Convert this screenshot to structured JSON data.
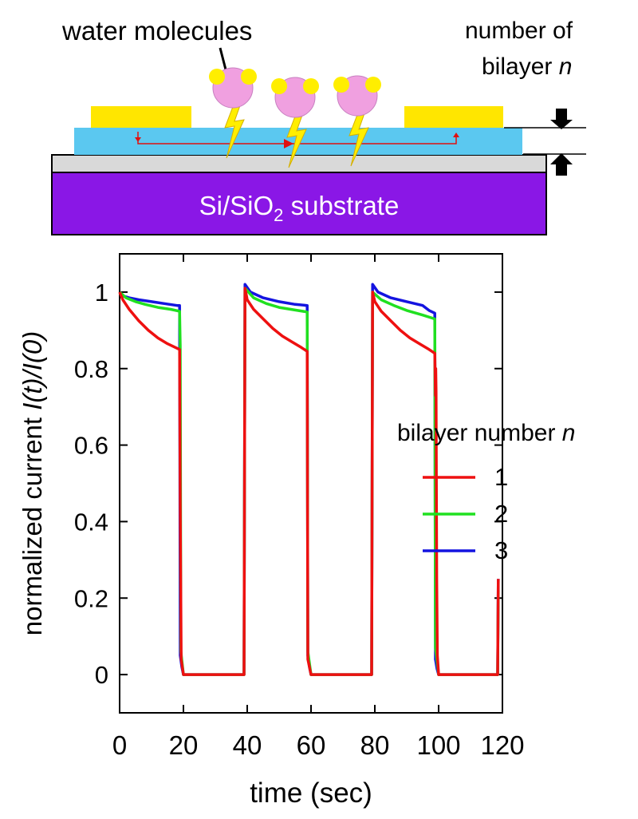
{
  "diagram": {
    "molecule_label": "water molecules",
    "thickness_label_line1": "number of",
    "thickness_label_line2_text": "bilayer ",
    "thickness_label_line2_var": "n",
    "substrate_label_main": "Si/SiO",
    "substrate_label_sub": "2",
    "substrate_label_rest": " substrate",
    "colors": {
      "electrode": "#ffe600",
      "film": "#5bc8f0",
      "oxide": "#d9d9d9",
      "substrate": "#8a17e6",
      "molecule": "#f0a0e0",
      "hydrogen": "#ffee00",
      "current_arrow": "#e01010"
    }
  },
  "chart_data": {
    "type": "line",
    "ylabel_prefix": "normalized current  ",
    "ylabel_math": "I(t)/I(0)",
    "xlabel": "time (sec)",
    "xlim": [
      0,
      120
    ],
    "ylim": [
      -0.1,
      1.1
    ],
    "x_ticks": [
      0,
      20,
      40,
      60,
      80,
      100,
      120
    ],
    "y_ticks": [
      0,
      0.2,
      0.4,
      0.6,
      0.8,
      1
    ],
    "y_tick_labels": [
      "0",
      "0.2",
      "0.4",
      "0.6",
      "0.8",
      "1"
    ],
    "legend_title_text": "bilayer  number  ",
    "legend_title_var": "n",
    "legend_placement": "right",
    "series": [
      {
        "name": "3",
        "color": "#1414e0",
        "points": [
          [
            0,
            1.0
          ],
          [
            1,
            0.99
          ],
          [
            3,
            0.985
          ],
          [
            6,
            0.98
          ],
          [
            10,
            0.975
          ],
          [
            14,
            0.97
          ],
          [
            18,
            0.965
          ],
          [
            18.8,
            0.965
          ],
          [
            19,
            0.05
          ],
          [
            19.5,
            0.02
          ],
          [
            20,
            0.0
          ],
          [
            39,
            0.0
          ],
          [
            39.3,
            1.02
          ],
          [
            41,
            1.0
          ],
          [
            45,
            0.985
          ],
          [
            50,
            0.975
          ],
          [
            55,
            0.968
          ],
          [
            58.8,
            0.965
          ],
          [
            59,
            0.05
          ],
          [
            59.5,
            0.02
          ],
          [
            60,
            0.0
          ],
          [
            79,
            0.0
          ],
          [
            79.3,
            1.02
          ],
          [
            81,
            1.0
          ],
          [
            85,
            0.985
          ],
          [
            90,
            0.975
          ],
          [
            95,
            0.965
          ],
          [
            97,
            0.952
          ],
          [
            98.8,
            0.945
          ],
          [
            99,
            0.04
          ],
          [
            99.5,
            0.015
          ],
          [
            100,
            0.0
          ],
          [
            118.5,
            0.0
          ],
          [
            118.7,
            0.25
          ]
        ]
      },
      {
        "name": "2",
        "color": "#20e020",
        "points": [
          [
            0,
            1.0
          ],
          [
            2,
            0.985
          ],
          [
            5,
            0.975
          ],
          [
            8,
            0.968
          ],
          [
            12,
            0.96
          ],
          [
            16,
            0.955
          ],
          [
            18.8,
            0.95
          ],
          [
            19,
            0.86
          ],
          [
            19.2,
            0.06
          ],
          [
            20,
            0.0
          ],
          [
            39,
            0.0
          ],
          [
            39.3,
            1.01
          ],
          [
            42,
            0.985
          ],
          [
            46,
            0.97
          ],
          [
            50,
            0.96
          ],
          [
            55,
            0.953
          ],
          [
            58.8,
            0.948
          ],
          [
            59,
            0.06
          ],
          [
            60,
            0.0
          ],
          [
            79,
            0.0
          ],
          [
            79.3,
            1.0
          ],
          [
            82,
            0.98
          ],
          [
            86,
            0.965
          ],
          [
            90,
            0.952
          ],
          [
            95,
            0.94
          ],
          [
            98.8,
            0.93
          ],
          [
            99,
            0.07
          ],
          [
            100,
            0.0
          ],
          [
            118.5,
            0.0
          ],
          [
            118.7,
            0.22
          ]
        ]
      },
      {
        "name": "1",
        "color": "#ee1010",
        "points": [
          [
            0,
            1.0
          ],
          [
            1,
            0.98
          ],
          [
            3,
            0.955
          ],
          [
            6,
            0.925
          ],
          [
            9,
            0.9
          ],
          [
            12,
            0.88
          ],
          [
            15,
            0.865
          ],
          [
            18.8,
            0.85
          ],
          [
            19,
            0.45
          ],
          [
            19.3,
            0.04
          ],
          [
            20,
            0.0
          ],
          [
            39,
            0.0
          ],
          [
            39.3,
            1.01
          ],
          [
            40,
            0.98
          ],
          [
            42,
            0.955
          ],
          [
            45,
            0.93
          ],
          [
            48,
            0.905
          ],
          [
            51,
            0.885
          ],
          [
            54,
            0.87
          ],
          [
            57,
            0.855
          ],
          [
            58.8,
            0.845
          ],
          [
            59,
            0.04
          ],
          [
            60,
            0.0
          ],
          [
            79,
            0.0
          ],
          [
            79.3,
            1.0
          ],
          [
            80,
            0.975
          ],
          [
            82,
            0.95
          ],
          [
            85,
            0.925
          ],
          [
            88,
            0.9
          ],
          [
            91,
            0.88
          ],
          [
            94,
            0.865
          ],
          [
            97,
            0.85
          ],
          [
            98.8,
            0.84
          ],
          [
            99,
            0.73
          ],
          [
            99.1,
            0.8
          ],
          [
            99.2,
            0.74
          ],
          [
            99.4,
            0.25
          ],
          [
            99.6,
            0.05
          ],
          [
            100,
            0.0
          ],
          [
            118.5,
            0.0
          ],
          [
            118.7,
            0.25
          ]
        ]
      }
    ]
  }
}
